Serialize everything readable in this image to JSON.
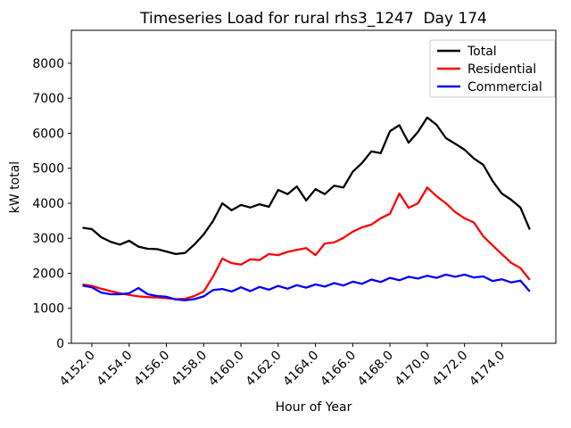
{
  "chart_data": {
    "type": "line",
    "title": "Timeseries Load for rural rhs3_1247  Day 174",
    "xlabel": "Hour of Year",
    "ylabel": "kW total",
    "grid": false,
    "legend_position": "upper right",
    "xlim": [
      4150.9,
      4176.9
    ],
    "ylim": [
      0,
      8940
    ],
    "x_tick_values": [
      4152,
      4154,
      4156,
      4158,
      4160,
      4162,
      4164,
      4166,
      4168,
      4170,
      4172,
      4174
    ],
    "x_tick_labels": [
      "4152.0",
      "4154.0",
      "4156.0",
      "4158.0",
      "4160.0",
      "4162.0",
      "4164.0",
      "4166.0",
      "4168.0",
      "4170.0",
      "4172.0",
      "4174.0"
    ],
    "y_tick_values": [
      0,
      1000,
      2000,
      3000,
      4000,
      5000,
      6000,
      7000,
      8000
    ],
    "y_tick_labels": [
      "0",
      "1000",
      "2000",
      "3000",
      "4000",
      "5000",
      "6000",
      "7000",
      "8000"
    ],
    "x": [
      4151.5,
      4152.0,
      4152.5,
      4153.0,
      4153.5,
      4154.0,
      4154.5,
      4155.0,
      4155.5,
      4156.0,
      4156.5,
      4157.0,
      4157.5,
      4158.0,
      4158.5,
      4159.0,
      4159.5,
      4160.0,
      4160.5,
      4161.0,
      4161.5,
      4162.0,
      4162.5,
      4163.0,
      4163.5,
      4164.0,
      4164.5,
      4165.0,
      4165.5,
      4166.0,
      4166.5,
      4167.0,
      4167.5,
      4168.0,
      4168.5,
      4169.0,
      4169.5,
      4170.0,
      4170.5,
      4171.0,
      4171.5,
      4172.0,
      4172.5,
      4173.0,
      4173.5,
      4174.0,
      4174.5,
      4175.0,
      4175.5
    ],
    "series": [
      {
        "name": "Total",
        "color": "#000000",
        "values": [
          3300,
          3260,
          3030,
          2900,
          2820,
          2930,
          2760,
          2700,
          2690,
          2620,
          2550,
          2580,
          2820,
          3110,
          3490,
          4000,
          3800,
          3950,
          3880,
          3970,
          3900,
          4380,
          4260,
          4480,
          4080,
          4400,
          4260,
          4500,
          4450,
          4900,
          5150,
          5480,
          5430,
          6060,
          6230,
          5730,
          6040,
          6450,
          6240,
          5860,
          5700,
          5530,
          5280,
          5100,
          4640,
          4280,
          4100,
          3880,
          3250
        ]
      },
      {
        "name": "Residential",
        "color": "#ff0000",
        "values": [
          1680,
          1640,
          1560,
          1490,
          1430,
          1380,
          1340,
          1320,
          1310,
          1290,
          1260,
          1270,
          1350,
          1480,
          1900,
          2420,
          2290,
          2250,
          2400,
          2380,
          2550,
          2520,
          2610,
          2670,
          2720,
          2520,
          2850,
          2880,
          3010,
          3190,
          3310,
          3390,
          3570,
          3700,
          4280,
          3870,
          4000,
          4450,
          4200,
          4000,
          3750,
          3570,
          3450,
          3060,
          2800,
          2550,
          2300,
          2150,
          1810
        ]
      },
      {
        "name": "Commercial",
        "color": "#0000ff",
        "values": [
          1650,
          1600,
          1450,
          1400,
          1400,
          1430,
          1580,
          1400,
          1350,
          1330,
          1250,
          1230,
          1260,
          1340,
          1520,
          1550,
          1480,
          1600,
          1490,
          1610,
          1530,
          1640,
          1560,
          1660,
          1590,
          1680,
          1620,
          1720,
          1650,
          1760,
          1700,
          1820,
          1750,
          1870,
          1800,
          1900,
          1850,
          1930,
          1870,
          1960,
          1900,
          1960,
          1880,
          1910,
          1780,
          1830,
          1740,
          1790,
          1480
        ]
      }
    ]
  }
}
